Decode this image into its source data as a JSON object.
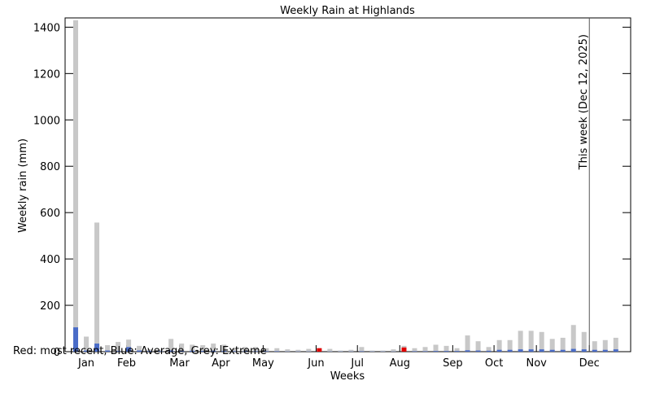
{
  "chart_data": {
    "type": "bar",
    "title": "Weekly Rain at Highlands",
    "xlabel": "Weeks",
    "ylabel": "Weekly rain (mm)",
    "legend_text": "Red: most recent, Blue: Average, Grey: Extreme",
    "x": [
      1,
      2,
      3,
      4,
      5,
      6,
      7,
      8,
      9,
      10,
      11,
      12,
      13,
      14,
      15,
      16,
      17,
      18,
      19,
      20,
      21,
      22,
      23,
      24,
      25,
      26,
      27,
      28,
      29,
      30,
      31,
      32,
      33,
      34,
      35,
      36,
      37,
      38,
      39,
      40,
      41,
      42,
      43,
      44,
      45,
      46,
      47,
      48,
      49,
      50,
      51,
      52
    ],
    "xlim": [
      0,
      53.4
    ],
    "xticks": [
      {
        "value": 2.0,
        "label": "Jan"
      },
      {
        "value": 5.8,
        "label": "Feb"
      },
      {
        "value": 10.8,
        "label": "Mar"
      },
      {
        "value": 14.7,
        "label": "Apr"
      },
      {
        "value": 18.7,
        "label": "May"
      },
      {
        "value": 23.7,
        "label": "Jun"
      },
      {
        "value": 27.6,
        "label": "Jul"
      },
      {
        "value": 31.6,
        "label": "Aug"
      },
      {
        "value": 36.6,
        "label": "Sep"
      },
      {
        "value": 40.5,
        "label": "Oct"
      },
      {
        "value": 44.5,
        "label": "Nov"
      },
      {
        "value": 49.5,
        "label": "Dec"
      }
    ],
    "ylim": [
      0,
      1440
    ],
    "yticks": [
      0,
      200,
      400,
      600,
      800,
      1000,
      1200,
      1400
    ],
    "series": [
      {
        "color": "#c8c8c8",
        "values": [
          1430,
          65,
          557,
          28,
          42,
          52,
          25,
          10,
          8,
          55,
          35,
          30,
          28,
          35,
          30,
          15,
          20,
          20,
          15,
          15,
          10,
          8,
          12,
          15,
          12,
          5,
          8,
          20,
          5,
          5,
          10,
          25,
          15,
          20,
          30,
          25,
          15,
          70,
          45,
          20,
          50,
          50,
          90,
          90,
          85,
          55,
          60,
          115,
          85,
          45,
          50,
          60
        ]
      },
      {
        "color": "#4a6cc8",
        "values": [
          105,
          5,
          35,
          5,
          3,
          20,
          5,
          3,
          2,
          5,
          4,
          4,
          3,
          4,
          3,
          2,
          2,
          2,
          2,
          2,
          1,
          1,
          1,
          2,
          1,
          1,
          1,
          2,
          1,
          1,
          1,
          2,
          2,
          2,
          3,
          3,
          3,
          6,
          5,
          4,
          8,
          8,
          10,
          10,
          10,
          8,
          8,
          12,
          10,
          8,
          8,
          10
        ]
      },
      {
        "color": "#e00000",
        "values": [
          0,
          0,
          0,
          0,
          0,
          0,
          0,
          0,
          0,
          0,
          0,
          0,
          0,
          0,
          0,
          0,
          0,
          0,
          0,
          0,
          0,
          0,
          0,
          15,
          0,
          0,
          0,
          0,
          0,
          0,
          0,
          18,
          0,
          0,
          0,
          0,
          0,
          0,
          0,
          0,
          0,
          0,
          0,
          0,
          0,
          0,
          0,
          0,
          0,
          0,
          0,
          0
        ]
      }
    ],
    "annotation": {
      "text": "This week (Dec 12, 2025)",
      "x": 49.5
    }
  }
}
